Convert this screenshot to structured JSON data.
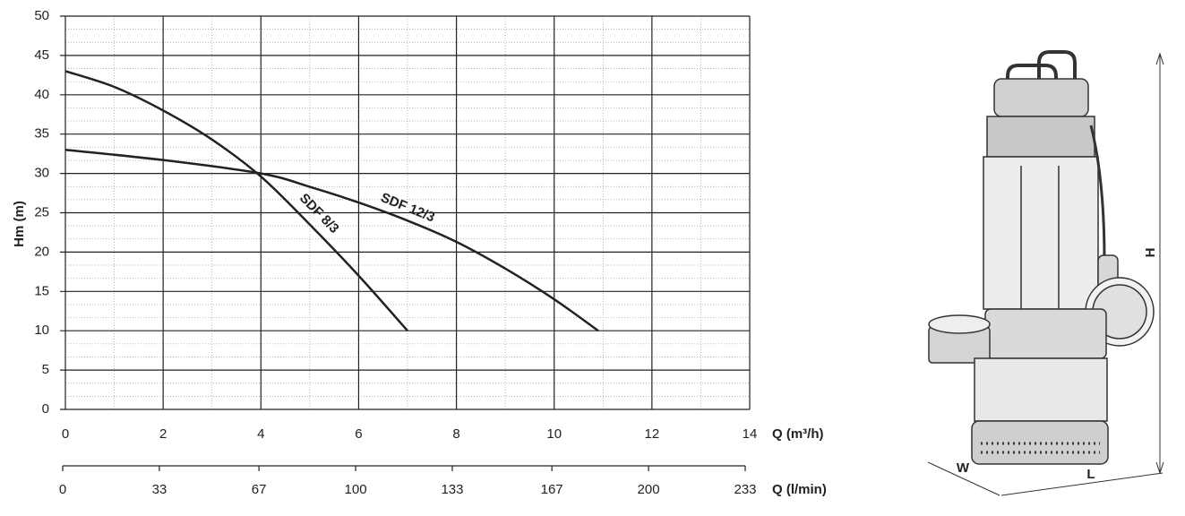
{
  "chart_data": {
    "type": "line",
    "y_label": "Hm (m)",
    "x_label": "Q (m³/h)",
    "x2_label": "Q (l/min)",
    "xlim": [
      0,
      14
    ],
    "xticks": [
      0,
      2,
      4,
      6,
      8,
      10,
      12,
      14
    ],
    "ylim": [
      0,
      50
    ],
    "yticks": [
      0,
      5,
      10,
      15,
      20,
      25,
      30,
      35,
      40,
      45,
      50
    ],
    "x2lim": [
      0,
      233
    ],
    "x2ticks": [
      0,
      33,
      67,
      100,
      133,
      167,
      200,
      233
    ],
    "grid": true,
    "minor_grid": true,
    "series": [
      {
        "name": "SDF 12/3",
        "color": "#222222",
        "x": [
          0,
          2,
          4,
          5,
          6,
          7,
          8,
          9,
          10,
          10.9
        ],
        "values": [
          33,
          31.7,
          30,
          28.3,
          26.3,
          24,
          21.3,
          17.9,
          14,
          10
        ]
      },
      {
        "name": "SDF 8/3",
        "color": "#222222",
        "x": [
          0,
          1,
          2,
          3,
          4,
          5,
          6,
          7
        ],
        "values": [
          43,
          41,
          38,
          34.3,
          29.6,
          23.5,
          17,
          10
        ]
      }
    ]
  },
  "pump_drawing": {
    "height_label": "H",
    "width_label": "W",
    "length_label": "L"
  }
}
